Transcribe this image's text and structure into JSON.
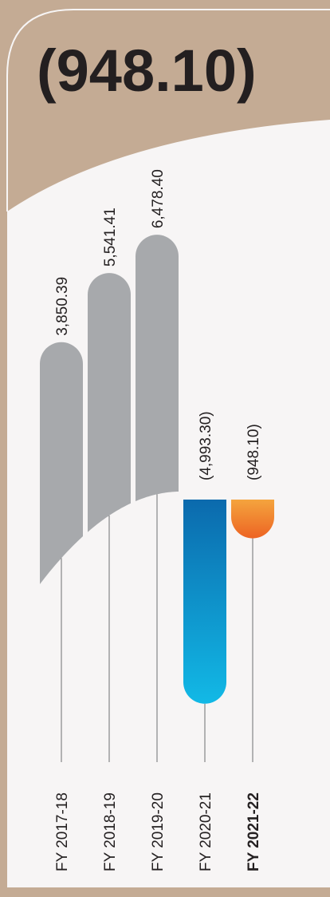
{
  "chart_data": {
    "type": "bar",
    "title": "(948.10)",
    "categories": [
      "FY 2017-18",
      "FY 2018-19",
      "FY 2019-20",
      "FY 2020-21",
      "FY 2021-22"
    ],
    "values": [
      3850.39,
      5541.41,
      6478.4,
      -4993.3,
      -948.1
    ],
    "value_labels": [
      "3,850.39",
      "5,541.41",
      "6,478.40",
      "(4,993.30)",
      "(948.10)"
    ],
    "colors": [
      "#a7a9ac",
      "#a7a9ac",
      "#a7a9ac",
      "#0b6fb0",
      "#f08a30"
    ],
    "highlight": 4,
    "ylim": [
      -9000,
      9000
    ]
  }
}
